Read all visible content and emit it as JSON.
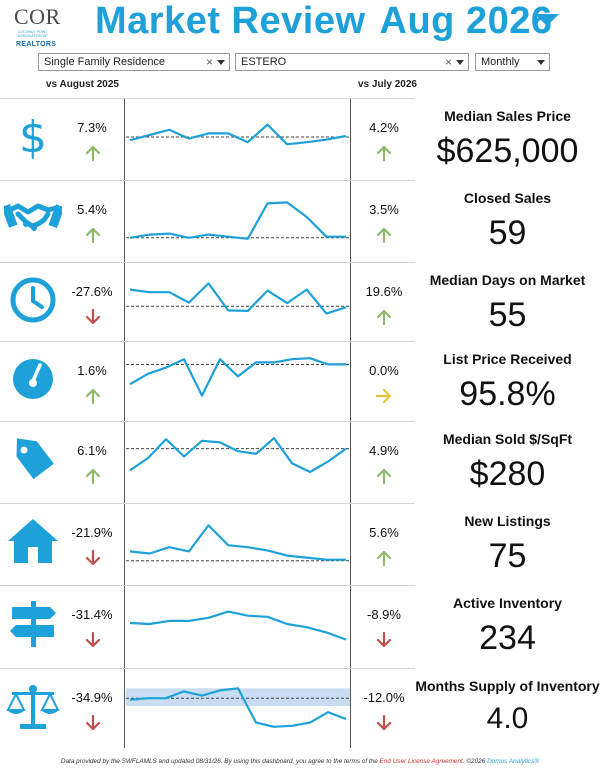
{
  "header": {
    "logo": {
      "brand": "COR",
      "subtitle": "COCONUT POINT ASSOCIATION OF",
      "realtors": "REALTORS"
    },
    "title_part1": "Market Review",
    "title_part2": "Aug 2026"
  },
  "filters": {
    "property_type": "Single Family Residence",
    "city": "ESTERO",
    "period": "Monthly",
    "clear_glyph": "×"
  },
  "comparisons": {
    "left": "vs August 2025",
    "right": "vs July 2026"
  },
  "colors": {
    "accent": "#1da1d8",
    "up": "#8fb96a",
    "down": "#c0504d",
    "flat": "#e8c33a",
    "band": "#c8ddf2"
  },
  "metrics": [
    {
      "name": "Median Sales Price",
      "value": "$625,000",
      "yoy": "7.3%",
      "yoy_dir": "up",
      "mom": "4.2%",
      "mom_dir": "up",
      "icon": "dollar-icon"
    },
    {
      "name": "Closed Sales",
      "value": "59",
      "yoy": "5.4%",
      "yoy_dir": "up",
      "mom": "3.5%",
      "mom_dir": "up",
      "icon": "handshake-icon"
    },
    {
      "name": "Median Days on Market",
      "value": "55",
      "yoy": "-27.6%",
      "yoy_dir": "down",
      "mom": "19.6%",
      "mom_dir": "up",
      "icon": "clock-icon"
    },
    {
      "name": "List Price Received",
      "value": "95.8%",
      "yoy": "1.6%",
      "yoy_dir": "up",
      "mom": "0.0%",
      "mom_dir": "flat",
      "icon": "gauge-icon"
    },
    {
      "name": "Median Sold $/SqFt",
      "value": "$280",
      "yoy": "6.1%",
      "yoy_dir": "up",
      "mom": "4.9%",
      "mom_dir": "up",
      "icon": "price-tag-icon"
    },
    {
      "name": "New Listings",
      "value": "75",
      "yoy": "-21.9%",
      "yoy_dir": "down",
      "mom": "5.6%",
      "mom_dir": "up",
      "icon": "house-icon"
    },
    {
      "name": "Active Inventory",
      "value": "234",
      "yoy": "-31.4%",
      "yoy_dir": "down",
      "mom": "-8.9%",
      "mom_dir": "down",
      "icon": "signpost-icon"
    },
    {
      "name": "Months Supply of Inventory",
      "value": "4.0",
      "yoy": "-34.9%",
      "yoy_dir": "down",
      "mom": "-12.0%",
      "mom_dir": "down",
      "icon": "scale-icon"
    }
  ],
  "footer": {
    "text1": "Data provided by the SWFLAMLS and updated 08/31/26.  By using this dashboard, you agree to the terms of the ",
    "link": "End User License Agreement",
    "text2": ".  ©2026 ",
    "brand": "Domus Analytics®"
  }
}
